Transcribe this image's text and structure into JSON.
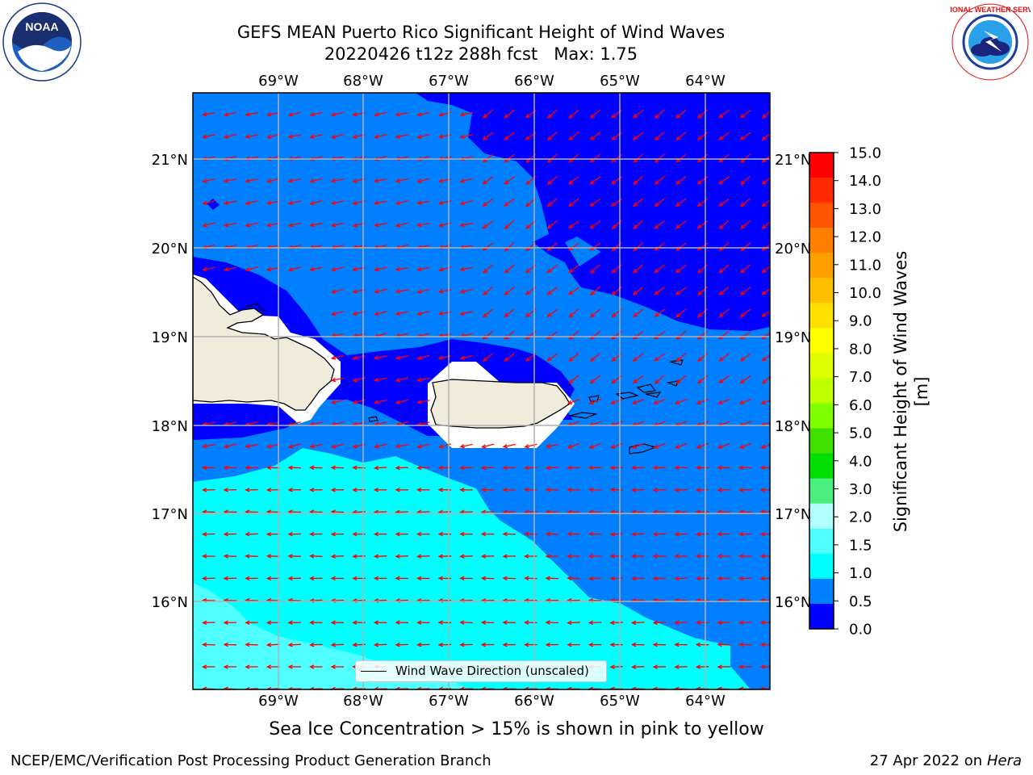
{
  "title": {
    "line1": "GEFS MEAN Puerto Rico Significant Height of Wind Waves",
    "line2": "20220426 t12z 288h fcst   Max: 1.75"
  },
  "axes": {
    "lon_ticks": [
      "69°W",
      "68°W",
      "67°W",
      "66°W",
      "65°W",
      "64°W"
    ],
    "lat_ticks": [
      "21°N",
      "20°N",
      "19°N",
      "18°N",
      "17°N",
      "16°N"
    ]
  },
  "colorbar": {
    "label": "Significant Height of Wind Waves [m]",
    "ticks": [
      "15.0",
      "14.0",
      "13.0",
      "12.0",
      "11.0",
      "10.0",
      "9.0",
      "8.0",
      "7.0",
      "6.0",
      "5.0",
      "4.0",
      "3.0",
      "2.0",
      "1.5",
      "1.0",
      "0.5",
      "0.0"
    ],
    "colors_top_to_bottom": [
      "#ff0000",
      "#ff2a00",
      "#ff5500",
      "#ff7f00",
      "#ff9f00",
      "#ffbf00",
      "#ffdf00",
      "#ffff00",
      "#dfff00",
      "#bfff00",
      "#7fff00",
      "#3fdf00",
      "#00df00",
      "#4cef7f",
      "#b2ffff",
      "#50ffff",
      "#00ffff",
      "#0080ff",
      "#0000ff"
    ]
  },
  "legend": {
    "label": "Wind Wave Direction (unscaled)"
  },
  "colors": {
    "band_0_0p5": "#0000ff",
    "band_0p5_1": "#0080ff",
    "band_1_1p5": "#00ffff",
    "band_1p5_2": "#50ffff",
    "land": "#efecdc",
    "arrow": "#ff0000",
    "grid": "#b0b0b0"
  },
  "caption": "Sea Ice Concentration > 15% is shown in pink to yellow",
  "footer": {
    "left": "NCEP/EMC/Verification Post Processing Product Generation Branch",
    "date": "27 Apr 2022 on ",
    "machine": "Hera"
  },
  "logos": {
    "noaa": "NOAA",
    "nws": "NATIONAL WEATHER SERVICE"
  }
}
